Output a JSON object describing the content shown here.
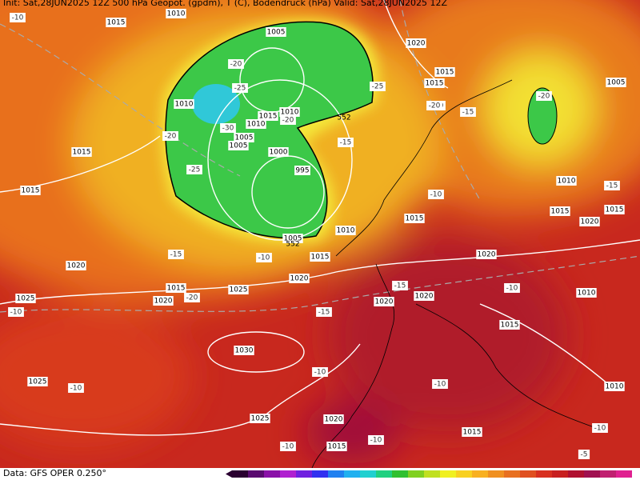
{
  "header": {
    "text": "Init: Sat,28JUN2025 12Z   500 hPa Geopot. (gpdm), T (C), Bodendruck (hPa)   Valid: Sat,28JUN2025 12Z"
  },
  "isobar_labels": [
    "1010",
    "1015",
    "1005",
    "1020",
    "1015",
    "1015",
    "1005",
    "1010",
    "1015",
    "1010",
    "1010",
    "1005",
    "1005",
    "1000",
    "995",
    "1015",
    "1015",
    "1010",
    "1015",
    "1015",
    "1020",
    "1015",
    "1010",
    "1005",
    "1015",
    "1020",
    "1020",
    "1020",
    "1015",
    "1025",
    "1020",
    "1025",
    "1020",
    "1020",
    "1010",
    "1015",
    "1030",
    "1025",
    "1010",
    "1025",
    "1020",
    "1015",
    "1015"
  ],
  "temperature_labels": [
    "-10",
    "-20",
    "-25",
    "-20",
    "-25",
    "-20",
    "-15",
    "-20",
    "-30",
    "-25",
    "-20",
    "-15",
    "-15",
    "-10",
    "-20",
    "-10",
    "-15",
    "-20",
    "-10",
    "-15",
    "-10",
    "-10",
    "-10",
    "-10",
    "-10",
    "-15",
    "-10",
    "-10",
    "-5"
  ],
  "contour_labels": [
    "552",
    "552"
  ],
  "footer": {
    "source": "Data: GFS OPER 0.250°"
  }
}
